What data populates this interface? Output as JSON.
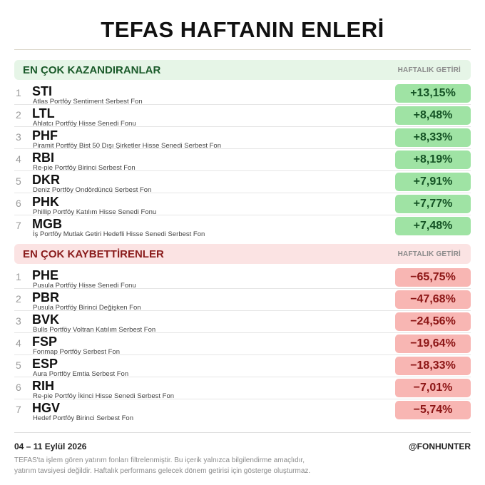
{
  "title": "TEFAS HAFTANIN ENLERİ",
  "gainers": {
    "title": "EN ÇOK KAZANDIRANLAR",
    "subtitle": "HAFTALIK GETİRİ",
    "items": [
      {
        "rank": "1",
        "code": "STI",
        "name": "Atlas Portföy Sentiment Serbest Fon",
        "value": "+13,15%"
      },
      {
        "rank": "2",
        "code": "LTL",
        "name": "Ahlatcı Portföy Hisse Senedi Fonu",
        "value": "+8,48%"
      },
      {
        "rank": "3",
        "code": "PHF",
        "name": "Piramit Portföy Bist 50 Dışı Şirketler Hisse Senedi Serbest Fon",
        "value": "+8,33%"
      },
      {
        "rank": "4",
        "code": "RBI",
        "name": "Re-pie Portföy Birinci Serbest Fon",
        "value": "+8,19%"
      },
      {
        "rank": "5",
        "code": "DKR",
        "name": "Deniz Portföy Ondördüncü Serbest Fon",
        "value": "+7,91%"
      },
      {
        "rank": "6",
        "code": "PHK",
        "name": "Phillip Portföy Katılım Hisse Senedi Fonu",
        "value": "+7,77%"
      },
      {
        "rank": "7",
        "code": "MGB",
        "name": "İş Portföy Mutlak Getiri Hedefli Hisse Senedi Serbest Fon",
        "value": "+7,48%"
      }
    ]
  },
  "losers": {
    "title": "EN ÇOK KAYBETTİRENLER",
    "subtitle": "HAFTALIK GETİRİ",
    "items": [
      {
        "rank": "1",
        "code": "PHE",
        "name": "Pusula Portföy Hisse Senedi Fonu",
        "value": "−65,75%"
      },
      {
        "rank": "2",
        "code": "PBR",
        "name": "Pusula Portföy Birinci Değişken Fon",
        "value": "−47,68%"
      },
      {
        "rank": "3",
        "code": "BVK",
        "name": "Bulls Portföy Voltran Katılım Serbest Fon",
        "value": "−24,56%"
      },
      {
        "rank": "4",
        "code": "FSP",
        "name": "Fonmap Portföy Serbest Fon",
        "value": "−19,64%"
      },
      {
        "rank": "5",
        "code": "ESP",
        "name": "Aura Portföy Emtia Serbest Fon",
        "value": "−18,33%"
      },
      {
        "rank": "6",
        "code": "RIH",
        "name": "Re-pie Portföy İkinci Hisse Senedi Serbest Fon",
        "value": "−7,01%"
      },
      {
        "rank": "7",
        "code": "HGV",
        "name": "Hedef Portföy Birinci Serbest Fon",
        "value": "−5,74%"
      }
    ]
  },
  "footer": {
    "date": "04 – 11 Eylül 2026",
    "handle": "@FONHUNTER",
    "disclaimer_line1": "TEFAS'ta işlem gören yatırım fonları filtrelenmiştir. Bu içerik yalnızca bilgilendirme amaçlıdır,",
    "disclaimer_line2": "yatırım tavsiyesi değildir. Haftalık performans gelecek dönem getirisi için gösterge oluşturmaz."
  },
  "colors": {
    "gain_badge": "#9fe3a4",
    "gain_header": "#e6f5e7",
    "loss_badge": "#f8b6b3",
    "loss_header": "#fbe3e3"
  }
}
